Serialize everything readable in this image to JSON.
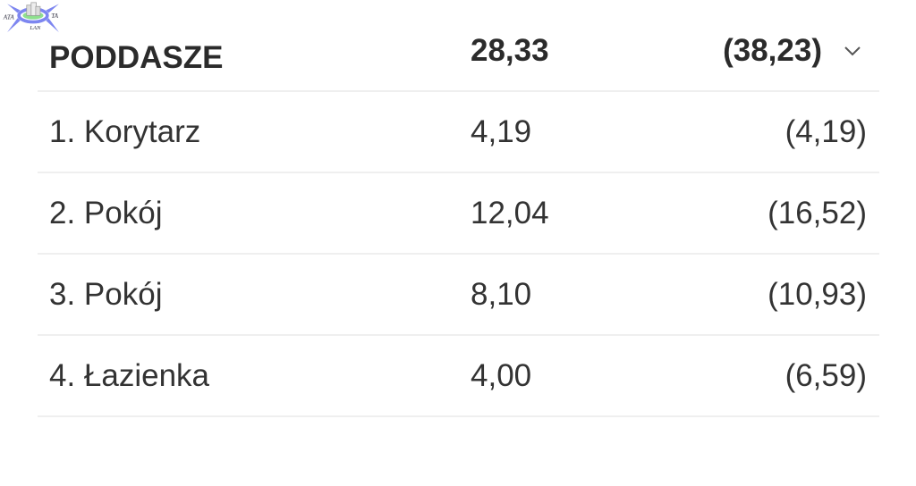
{
  "logo": {
    "text": [
      "ATA",
      "TA",
      "LAN"
    ]
  },
  "section": {
    "name": "PODDASZE",
    "area": "28,33",
    "total": "(38,23)",
    "icon": "chevron-down-icon"
  },
  "rooms": [
    {
      "name": "1. Korytarz",
      "area": "4,19",
      "total": "(4,19)"
    },
    {
      "name": "2. Pokój",
      "area": "12,04",
      "total": "(16,52)"
    },
    {
      "name": "3. Pokój",
      "area": "8,10",
      "total": "(10,93)"
    },
    {
      "name": "4. Łazienka",
      "area": "4,00",
      "total": "(6,59)"
    }
  ]
}
